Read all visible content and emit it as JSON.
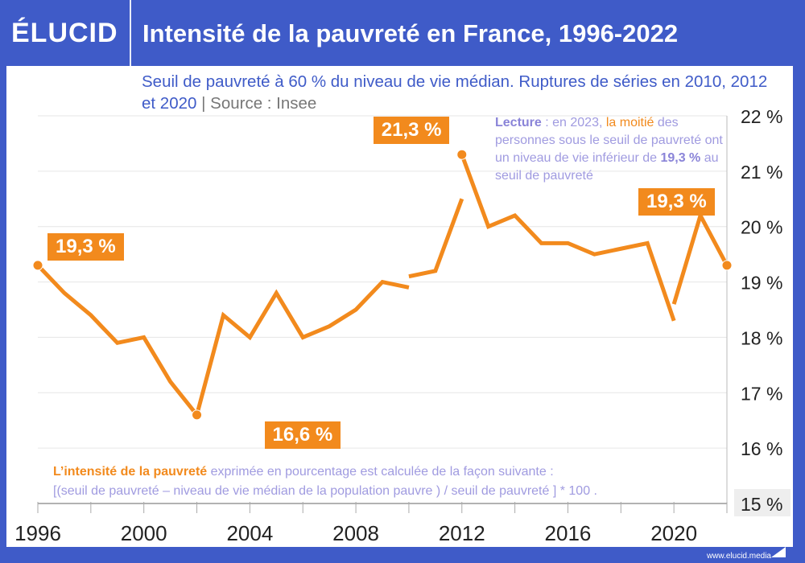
{
  "header": {
    "logo": "ÉLUCID",
    "title": "Intensité de la pauvreté en France, 1996-2022"
  },
  "subtitle": {
    "text": "Seuil de pauvreté à 60 % du niveau de vie médian. Ruptures de séries en 2010, 2012 et 2020",
    "source": "Source : Insee"
  },
  "lecture": {
    "label": "Lecture",
    "p1": " : en 2023, ",
    "p2": "la moitié",
    "p3": " des personnes sous le seuil de pauvreté ont un niveau de vie inférieur de ",
    "value": "19,3 %",
    "p4": " au seuil de pauvreté"
  },
  "note": {
    "bold": "L’intensité de la pauvreté",
    "line1": " exprimée en pourcentage est calculée de la façon suivante :",
    "line2": "[(seuil de pauvreté – niveau de vie médian de la population pauvre ) / seuil de pauvreté ] * 100 ."
  },
  "footer": {
    "site": "www.elucid.media"
  },
  "colors": {
    "background": "#3f5bc8",
    "series": "#f28a1d",
    "note": "#a09be0"
  },
  "chart_data": {
    "type": "line",
    "title": "Intensité de la pauvreté en France, 1996-2022",
    "ylim": [
      15,
      22
    ],
    "xlim": [
      1996,
      2022
    ],
    "y_ticks": [
      "15 %",
      "16 %",
      "17 %",
      "18 %",
      "19 %",
      "20 %",
      "21 %",
      "22 %"
    ],
    "x_ticks": [
      "1996",
      "2000",
      "2004",
      "2008",
      "2012",
      "2016",
      "2020"
    ],
    "grid": true,
    "segments": [
      {
        "x": [
          1996,
          1997,
          1998,
          1999,
          2000,
          2001,
          2002,
          2003,
          2004,
          2005,
          2006,
          2007,
          2008,
          2009,
          2010
        ],
        "y": [
          19.3,
          18.8,
          18.4,
          17.9,
          18.0,
          17.2,
          16.6,
          18.4,
          18.0,
          18.8,
          18.0,
          18.2,
          18.5,
          19.0,
          18.9
        ]
      },
      {
        "x": [
          2010,
          2011,
          2012
        ],
        "y": [
          19.1,
          19.2,
          20.5
        ]
      },
      {
        "x": [
          2012,
          2013,
          2014,
          2015,
          2016,
          2017,
          2018,
          2019,
          2020
        ],
        "y": [
          21.3,
          20.0,
          20.2,
          19.7,
          19.7,
          19.5,
          19.6,
          19.7,
          18.3
        ]
      },
      {
        "x": [
          2020,
          2021,
          2022
        ],
        "y": [
          18.6,
          20.2,
          19.3
        ]
      }
    ],
    "annotations": [
      {
        "x": 1996,
        "y": 19.3,
        "text": "19,3 %"
      },
      {
        "x": 2002,
        "y": 16.6,
        "text": "16,6 %"
      },
      {
        "x": 2012,
        "y": 21.3,
        "text": "21,3 %"
      },
      {
        "x": 2022,
        "y": 19.3,
        "text": "19,3 %"
      }
    ]
  }
}
